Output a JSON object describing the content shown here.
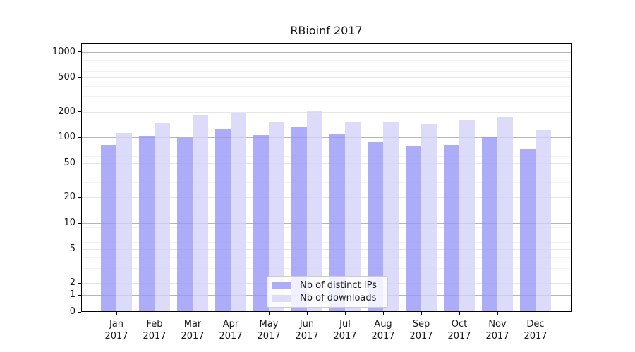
{
  "title": "RBioinf 2017",
  "legend": {
    "items": [
      {
        "label": "Nb of distinct IPs",
        "color": "#acacf8"
      },
      {
        "label": "Nb of downloads",
        "color": "#dcdcf9"
      }
    ]
  },
  "colors": {
    "bar_ips_fill": "rgba(151,151,246,0.8)",
    "bar_downloads_fill": "rgba(211,211,249,0.8)",
    "grid_major_dark": "#b5b5b5",
    "grid_major_light": "#e6e6e6",
    "grid_minor": "#f3f3f3",
    "frame": "#000000"
  },
  "y_axis": {
    "ticks": [
      0,
      1,
      2,
      5,
      10,
      20,
      50,
      100,
      200,
      500,
      1000
    ],
    "dark_gridline_values": [
      1,
      10,
      100,
      1000
    ],
    "minor_gridline_values": [
      3,
      4,
      6,
      7,
      8,
      9,
      30,
      40,
      60,
      70,
      80,
      90,
      300,
      400,
      600,
      700,
      800,
      900
    ]
  },
  "chart_data": {
    "type": "bar",
    "title": "RBioinf 2017",
    "categories": [
      "Jan 2017",
      "Feb 2017",
      "Mar 2017",
      "Apr 2017",
      "May 2017",
      "Jun 2017",
      "Jul 2017",
      "Aug 2017",
      "Sep 2017",
      "Oct 2017",
      "Nov 2017",
      "Dec 2017"
    ],
    "series": [
      {
        "name": "Nb of distinct IPs",
        "values": [
          81,
          104,
          98,
          127,
          106,
          132,
          108,
          90,
          80,
          81,
          100,
          75
        ],
        "color": "#acacf8"
      },
      {
        "name": "Nb of downloads",
        "values": [
          112,
          147,
          186,
          195,
          150,
          204,
          149,
          153,
          144,
          160,
          175,
          122
        ],
        "color": "#dcdcf9"
      }
    ],
    "yscale": "symlog",
    "y_ticks": [
      0,
      1,
      2,
      5,
      10,
      20,
      50,
      100,
      200,
      500,
      1000
    ],
    "ylim": [
      0,
      1260
    ],
    "xlabel": "",
    "ylabel": "",
    "grid": true,
    "legend_position": "lower center"
  }
}
